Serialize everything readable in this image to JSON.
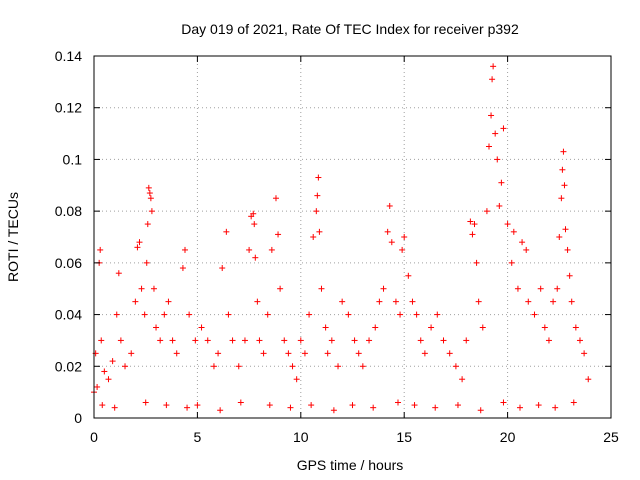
{
  "chart_data": {
    "type": "scatter",
    "title": "Day 019 of 2021, Rate Of TEC Index for receiver p392",
    "xlabel": "GPS time / hours",
    "ylabel": "ROTI / TECUs",
    "xlim": [
      0,
      25
    ],
    "ylim": [
      0,
      0.14
    ],
    "xticks": [
      0,
      5,
      10,
      15,
      20,
      25
    ],
    "xtick_labels": [
      "0",
      "5",
      "10",
      "15",
      "20",
      "25"
    ],
    "yticks": [
      0,
      0.02,
      0.04,
      0.06,
      0.08,
      0.1,
      0.12,
      0.14
    ],
    "ytick_labels": [
      "0",
      "0.02",
      "0.04",
      "0.06",
      "0.08",
      "0.1",
      "0.12",
      "0.14"
    ],
    "grid": true,
    "marker": "+",
    "series": [
      {
        "name": "ROTI",
        "color": "#ff0000",
        "x": [
          0.0,
          0.08,
          0.15,
          0.25,
          0.3,
          0.35,
          0.5,
          0.7,
          0.9,
          1.1,
          1.2,
          1.3,
          1.5,
          1.8,
          2.0,
          2.1,
          2.2,
          2.3,
          2.45,
          2.55,
          2.6,
          2.65,
          2.7,
          2.75,
          2.8,
          2.9,
          3.0,
          3.2,
          3.4,
          3.6,
          3.8,
          4.0,
          4.3,
          4.4,
          4.6,
          4.9,
          5.2,
          5.5,
          5.8,
          6.0,
          6.2,
          6.4,
          6.5,
          6.7,
          7.0,
          7.3,
          7.5,
          7.6,
          7.7,
          7.75,
          7.8,
          7.9,
          8.0,
          8.2,
          8.4,
          8.6,
          8.8,
          8.9,
          9.0,
          9.2,
          9.4,
          9.6,
          9.8,
          10.0,
          10.2,
          10.4,
          10.6,
          10.75,
          10.8,
          10.85,
          10.9,
          11.0,
          11.2,
          11.3,
          11.5,
          11.8,
          12.0,
          12.3,
          12.6,
          12.8,
          13.0,
          13.3,
          13.6,
          13.8,
          14.0,
          14.2,
          14.3,
          14.4,
          14.6,
          14.8,
          14.9,
          15.0,
          15.2,
          15.4,
          15.6,
          15.8,
          16.0,
          16.3,
          16.6,
          16.9,
          17.2,
          17.5,
          17.8,
          18.0,
          18.2,
          18.3,
          18.4,
          18.5,
          18.6,
          18.8,
          19.0,
          19.1,
          19.2,
          19.25,
          19.3,
          19.4,
          19.5,
          19.6,
          19.7,
          19.8,
          20.0,
          20.2,
          20.3,
          20.5,
          20.7,
          20.9,
          21.0,
          21.3,
          21.6,
          21.8,
          22.0,
          22.2,
          22.4,
          22.5,
          22.6,
          22.65,
          22.7,
          22.75,
          22.8,
          22.9,
          23.0,
          23.1,
          23.3,
          23.5,
          23.7,
          23.9,
          0.4,
          1.0,
          2.5,
          3.5,
          4.5,
          5.0,
          6.1,
          7.1,
          8.5,
          9.5,
          10.5,
          11.6,
          12.5,
          13.5,
          14.7,
          15.5,
          16.5,
          17.6,
          18.7,
          19.8,
          20.6,
          21.5,
          22.3,
          23.2
        ],
        "y": [
          0.01,
          0.025,
          0.012,
          0.06,
          0.065,
          0.03,
          0.018,
          0.015,
          0.022,
          0.04,
          0.056,
          0.03,
          0.02,
          0.025,
          0.045,
          0.066,
          0.068,
          0.05,
          0.04,
          0.06,
          0.075,
          0.089,
          0.087,
          0.085,
          0.08,
          0.05,
          0.035,
          0.03,
          0.04,
          0.045,
          0.03,
          0.025,
          0.058,
          0.065,
          0.04,
          0.03,
          0.035,
          0.03,
          0.02,
          0.025,
          0.058,
          0.072,
          0.04,
          0.03,
          0.02,
          0.03,
          0.065,
          0.078,
          0.079,
          0.075,
          0.062,
          0.045,
          0.03,
          0.025,
          0.04,
          0.065,
          0.085,
          0.071,
          0.05,
          0.03,
          0.025,
          0.02,
          0.015,
          0.03,
          0.025,
          0.04,
          0.07,
          0.08,
          0.086,
          0.093,
          0.072,
          0.05,
          0.035,
          0.025,
          0.03,
          0.02,
          0.045,
          0.04,
          0.03,
          0.025,
          0.02,
          0.03,
          0.035,
          0.045,
          0.05,
          0.072,
          0.082,
          0.068,
          0.045,
          0.04,
          0.065,
          0.07,
          0.055,
          0.045,
          0.04,
          0.03,
          0.025,
          0.035,
          0.04,
          0.03,
          0.025,
          0.02,
          0.015,
          0.03,
          0.076,
          0.071,
          0.075,
          0.06,
          0.045,
          0.035,
          0.08,
          0.105,
          0.117,
          0.131,
          0.136,
          0.11,
          0.1,
          0.082,
          0.091,
          0.112,
          0.075,
          0.06,
          0.072,
          0.05,
          0.068,
          0.065,
          0.045,
          0.04,
          0.05,
          0.035,
          0.03,
          0.045,
          0.05,
          0.07,
          0.085,
          0.096,
          0.103,
          0.09,
          0.073,
          0.065,
          0.055,
          0.045,
          0.035,
          0.03,
          0.025,
          0.015,
          0.005,
          0.004,
          0.006,
          0.005,
          0.004,
          0.005,
          0.003,
          0.006,
          0.005,
          0.004,
          0.005,
          0.003,
          0.005,
          0.004,
          0.006,
          0.005,
          0.004,
          0.005,
          0.003,
          0.006,
          0.004,
          0.005,
          0.004,
          0.006
        ]
      }
    ]
  }
}
